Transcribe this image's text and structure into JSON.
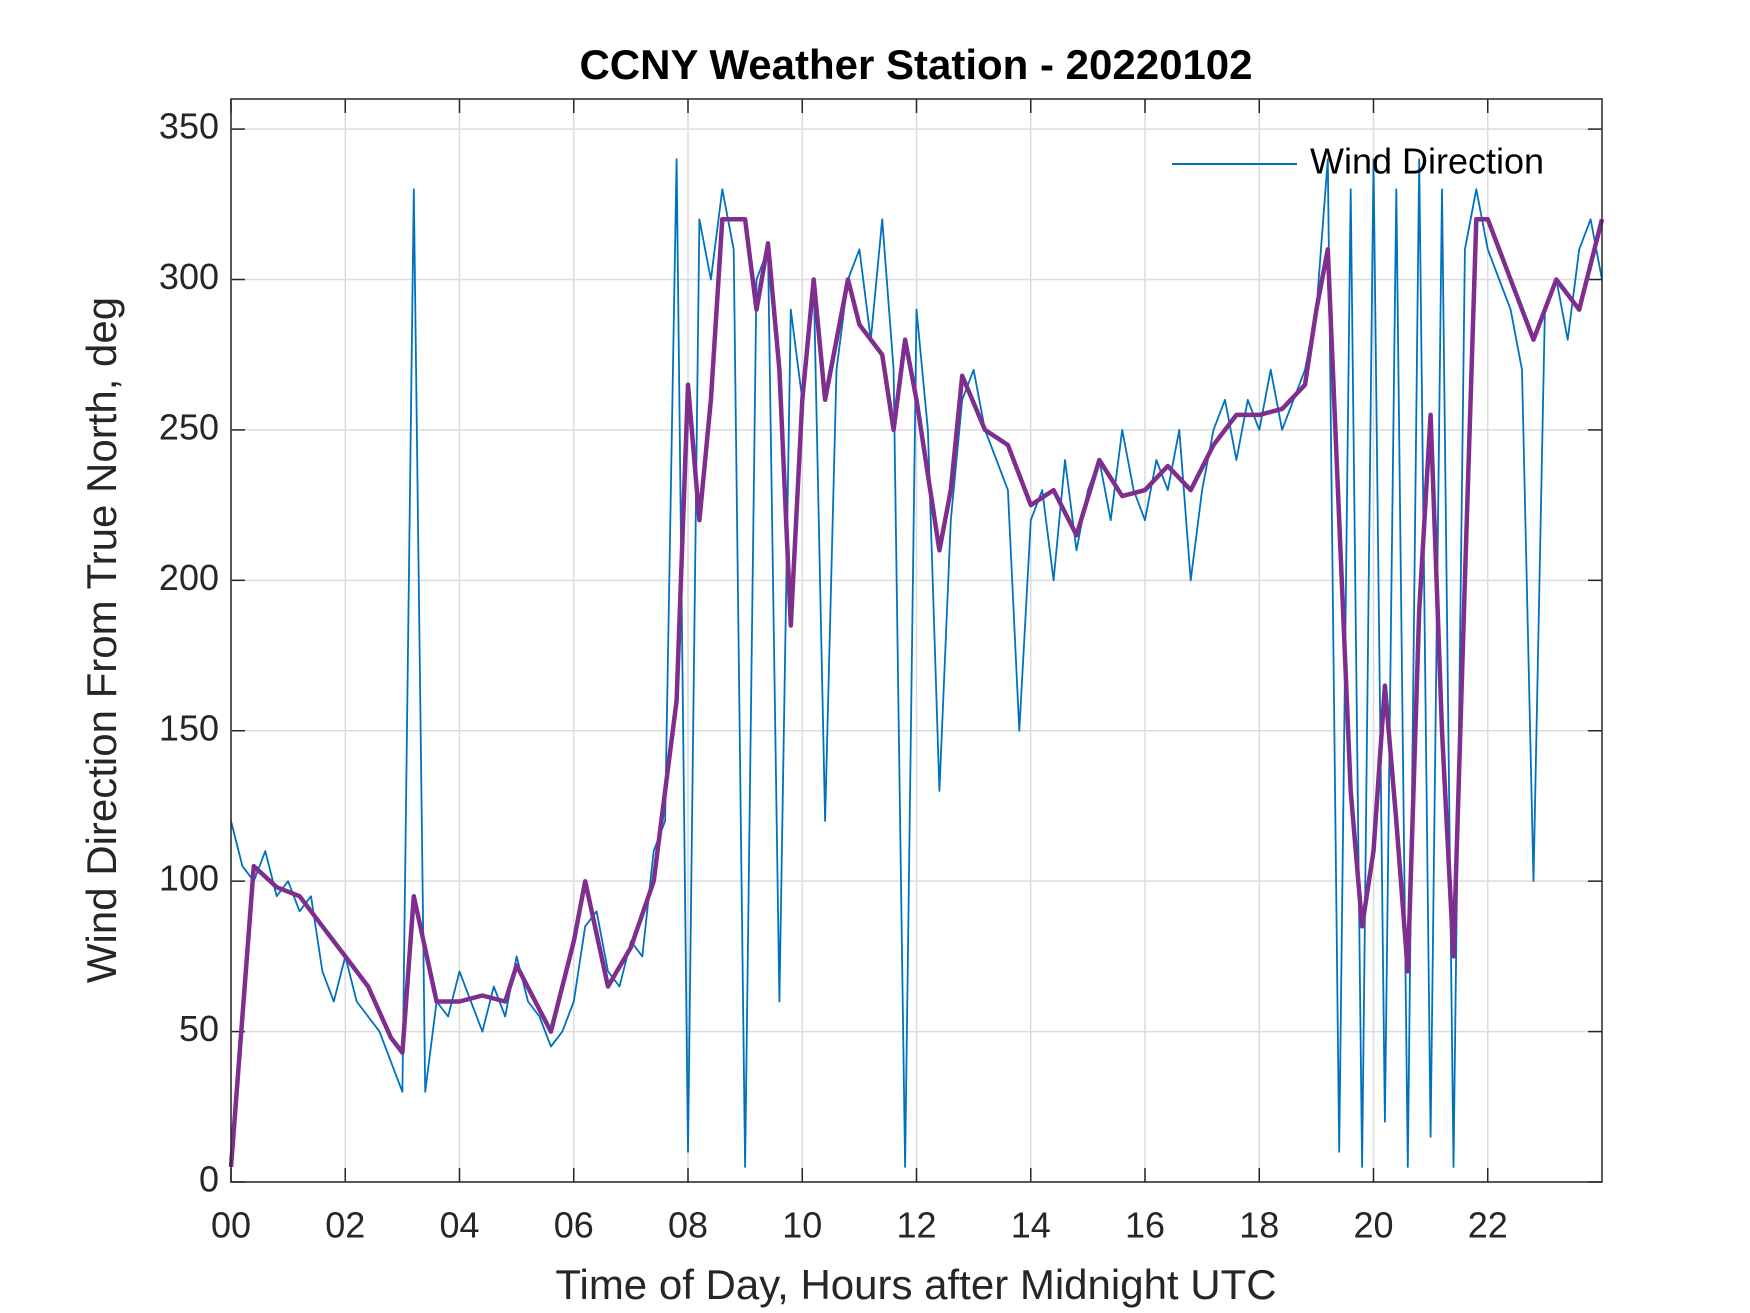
{
  "chart_data": {
    "type": "line",
    "title": "CCNY Weather Station - 20220102",
    "xlabel": "Time of Day, Hours after Midnight UTC",
    "ylabel": "Wind Direction From True North, deg",
    "xlim": [
      0,
      24
    ],
    "ylim": [
      0,
      360
    ],
    "xticks": [
      {
        "value": 0,
        "label": "00"
      },
      {
        "value": 2,
        "label": "02"
      },
      {
        "value": 4,
        "label": "04"
      },
      {
        "value": 6,
        "label": "06"
      },
      {
        "value": 8,
        "label": "08"
      },
      10,
      12,
      14,
      16,
      18,
      20,
      22
    ],
    "yticks": [
      0,
      50,
      100,
      150,
      200,
      250,
      300,
      350
    ],
    "grid": true,
    "legend": "northeast",
    "series": [
      {
        "name": "Wind Direction",
        "color": "#0072bd",
        "x": [
          0,
          0.2,
          0.4,
          0.6,
          0.8,
          1,
          1.2,
          1.4,
          1.6,
          1.8,
          2,
          2.2,
          2.4,
          2.6,
          2.8,
          3,
          3.2,
          3.4,
          3.6,
          3.8,
          4,
          4.2,
          4.4,
          4.6,
          4.8,
          5,
          5.2,
          5.4,
          5.6,
          5.8,
          6,
          6.2,
          6.4,
          6.6,
          6.8,
          7,
          7.2,
          7.4,
          7.6,
          7.8,
          8,
          8.2,
          8.4,
          8.6,
          8.8,
          9,
          9.2,
          9.4,
          9.6,
          9.8,
          10,
          10.2,
          10.4,
          10.6,
          10.8,
          11,
          11.2,
          11.4,
          11.6,
          11.8,
          12,
          12.2,
          12.4,
          12.6,
          12.8,
          13,
          13.2,
          13.4,
          13.6,
          13.8,
          14,
          14.2,
          14.4,
          14.6,
          14.8,
          15,
          15.2,
          15.4,
          15.6,
          15.8,
          16,
          16.2,
          16.4,
          16.6,
          16.8,
          17,
          17.2,
          17.4,
          17.6,
          17.8,
          18,
          18.2,
          18.4,
          18.6,
          18.8,
          19,
          19.2,
          19.4,
          19.6,
          19.8,
          20,
          20.2,
          20.4,
          20.6,
          20.8,
          21,
          21.2,
          21.4,
          21.6,
          21.8,
          22,
          22.2,
          22.4,
          22.6,
          22.8,
          23,
          23.2,
          23.4,
          23.6,
          23.8,
          24
        ],
        "values": [
          120,
          105,
          100,
          110,
          95,
          100,
          90,
          95,
          70,
          60,
          75,
          60,
          55,
          50,
          40,
          30,
          330,
          30,
          60,
          55,
          70,
          60,
          50,
          65,
          55,
          75,
          60,
          55,
          45,
          50,
          60,
          85,
          90,
          70,
          65,
          80,
          75,
          110,
          120,
          340,
          10,
          320,
          300,
          330,
          310,
          5,
          300,
          310,
          60,
          290,
          260,
          300,
          120,
          270,
          300,
          310,
          280,
          320,
          270,
          5,
          290,
          250,
          130,
          220,
          260,
          270,
          250,
          240,
          230,
          150,
          220,
          230,
          200,
          240,
          210,
          230,
          240,
          220,
          250,
          230,
          220,
          240,
          230,
          250,
          200,
          230,
          250,
          260,
          240,
          260,
          250,
          270,
          250,
          260,
          270,
          290,
          340,
          10,
          330,
          5,
          340,
          20,
          330,
          5,
          340,
          15,
          330,
          5,
          310,
          330,
          310,
          300,
          290,
          270,
          100,
          290,
          300,
          280,
          310,
          320,
          300
        ]
      },
      {
        "color": "#7e2f8e",
        "x": [
          0,
          0.4,
          0.8,
          1.2,
          1.6,
          2,
          2.4,
          2.8,
          3,
          3.2,
          3.6,
          4,
          4.4,
          4.8,
          5,
          5.6,
          6,
          6.2,
          6.6,
          7,
          7.4,
          7.8,
          8,
          8.2,
          8.4,
          8.6,
          9,
          9.2,
          9.4,
          9.6,
          9.8,
          10,
          10.2,
          10.4,
          10.8,
          11,
          11.4,
          11.6,
          11.8,
          12,
          12.4,
          12.6,
          12.8,
          13.2,
          13.6,
          14,
          14.4,
          14.8,
          15.2,
          15.6,
          16,
          16.4,
          16.8,
          17.2,
          17.6,
          18,
          18.4,
          18.8,
          19,
          19.2,
          19.4,
          19.6,
          19.8,
          20,
          20.2,
          20.4,
          20.6,
          20.8,
          21,
          21.2,
          21.4,
          21.6,
          21.8,
          22,
          22.4,
          22.8,
          23.2,
          23.6,
          24
        ],
        "values": [
          5,
          105,
          98,
          95,
          85,
          75,
          65,
          48,
          43,
          95,
          60,
          60,
          62,
          60,
          72,
          50,
          80,
          100,
          65,
          78,
          100,
          160,
          265,
          220,
          260,
          320,
          320,
          290,
          312,
          270,
          185,
          260,
          300,
          260,
          300,
          285,
          275,
          250,
          280,
          260,
          210,
          230,
          268,
          250,
          245,
          225,
          230,
          215,
          240,
          228,
          230,
          238,
          230,
          245,
          255,
          255,
          257,
          265,
          290,
          310,
          220,
          130,
          85,
          110,
          165,
          120,
          70,
          190,
          255,
          150,
          75,
          200,
          320,
          320,
          300,
          280,
          300,
          290,
          320
        ]
      }
    ]
  }
}
